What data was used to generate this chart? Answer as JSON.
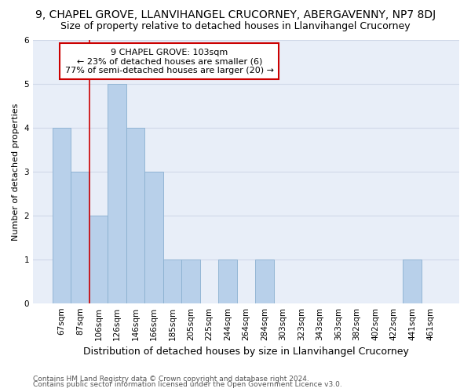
{
  "title": "9, CHAPEL GROVE, LLANVIHANGEL CRUCORNEY, ABERGAVENNY, NP7 8DJ",
  "subtitle": "Size of property relative to detached houses in Llanvihangel Crucorney",
  "xlabel": "Distribution of detached houses by size in Llanvihangel Crucorney",
  "ylabel": "Number of detached properties",
  "categories": [
    "67sqm",
    "87sqm",
    "106sqm",
    "126sqm",
    "146sqm",
    "166sqm",
    "185sqm",
    "205sqm",
    "225sqm",
    "244sqm",
    "264sqm",
    "284sqm",
    "303sqm",
    "323sqm",
    "343sqm",
    "363sqm",
    "382sqm",
    "402sqm",
    "422sqm",
    "441sqm",
    "461sqm"
  ],
  "values": [
    4,
    3,
    2,
    5,
    4,
    3,
    1,
    1,
    0,
    1,
    0,
    1,
    0,
    0,
    0,
    0,
    0,
    0,
    0,
    1,
    0
  ],
  "bar_color": "#b8d0ea",
  "bar_edge_color": "#8ab0d0",
  "bar_edge_width": 0.6,
  "red_line_x": 1.5,
  "annotation_title": "9 CHAPEL GROVE: 103sqm",
  "annotation_line2": "← 23% of detached houses are smaller (6)",
  "annotation_line3": "77% of semi-detached houses are larger (20) →",
  "annotation_box_color": "#ffffff",
  "annotation_box_edge_color": "#cc0000",
  "ylim": [
    0,
    6
  ],
  "yticks": [
    0,
    1,
    2,
    3,
    4,
    5,
    6
  ],
  "grid_color": "#d0d8e8",
  "background_color": "#e8eef8",
  "fig_facecolor": "#ffffff",
  "footer_line1": "Contains HM Land Registry data © Crown copyright and database right 2024.",
  "footer_line2": "Contains public sector information licensed under the Open Government Licence v3.0.",
  "title_fontsize": 10,
  "subtitle_fontsize": 9,
  "xlabel_fontsize": 9,
  "ylabel_fontsize": 8,
  "tick_fontsize": 7.5,
  "annotation_fontsize": 8,
  "footer_fontsize": 6.5
}
